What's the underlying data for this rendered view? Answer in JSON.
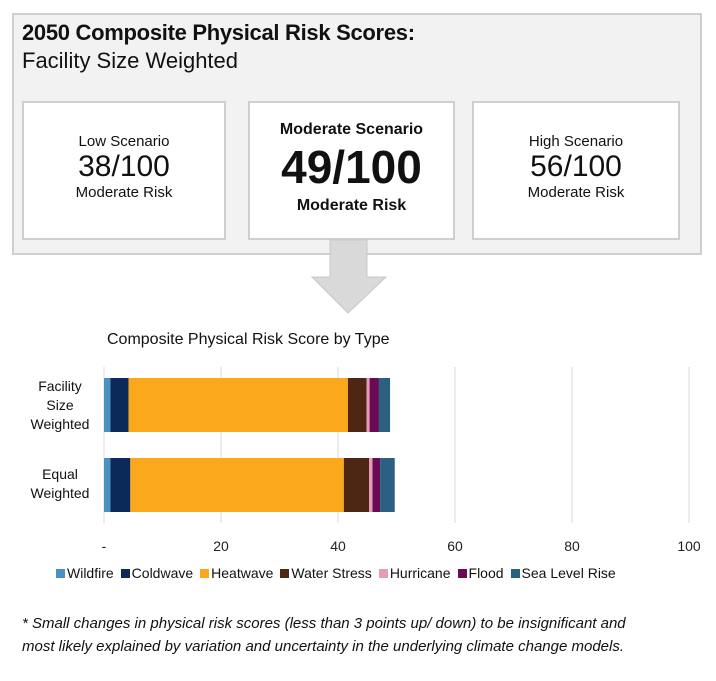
{
  "header": {
    "title": "2050 Composite Physical Risk Scores:",
    "subtitle": "Facility Size Weighted"
  },
  "scenarios": [
    {
      "label": "Low Scenario",
      "score": "38/100",
      "risk": "Moderate Risk"
    },
    {
      "label": "Moderate Scenario",
      "score": "49/100",
      "risk": "Moderate Risk"
    },
    {
      "label": "High Scenario",
      "score": "56/100",
      "risk": "Moderate Risk"
    }
  ],
  "chart_data": {
    "type": "bar",
    "orientation": "horizontal",
    "stacked": true,
    "title": "Composite Physical Risk Score by Type",
    "categories": [
      "Facility Size Weighted",
      "Equal Weighted"
    ],
    "category_lines": [
      [
        "Facility",
        "Size",
        "Weighted"
      ],
      [
        "Equal",
        "Weighted"
      ]
    ],
    "xlim": [
      0,
      100
    ],
    "xticks": [
      "-",
      "20",
      "40",
      "60",
      "80",
      "100"
    ],
    "xtick_values": [
      0,
      20,
      40,
      60,
      80,
      100
    ],
    "grid": "vertical",
    "legend": "bottom",
    "series": [
      {
        "name": "Wildfire",
        "color": "#4a90c0",
        "values": [
          1.1,
          1.1
        ]
      },
      {
        "name": "Coldwave",
        "color": "#0b2a5a",
        "values": [
          3.1,
          3.4
        ]
      },
      {
        "name": "Heatwave",
        "color": "#fba81c",
        "values": [
          37.5,
          36.5
        ]
      },
      {
        "name": "Water Stress",
        "color": "#4e2714",
        "values": [
          3.2,
          4.3
        ]
      },
      {
        "name": "Hurricane",
        "color": "#e79bb8",
        "values": [
          0.5,
          0.6
        ]
      },
      {
        "name": "Flood",
        "color": "#6a0a55",
        "values": [
          1.6,
          1.3
        ]
      },
      {
        "name": "Sea Level Rise",
        "color": "#2a6080",
        "values": [
          1.9,
          2.5
        ]
      }
    ]
  },
  "footnote": {
    "line1": "* Small changes in physical risk scores (less than 3 points up/ down) to be insignificant and",
    "line2": "most likely explained by variation and uncertainty in the underlying climate change models."
  }
}
